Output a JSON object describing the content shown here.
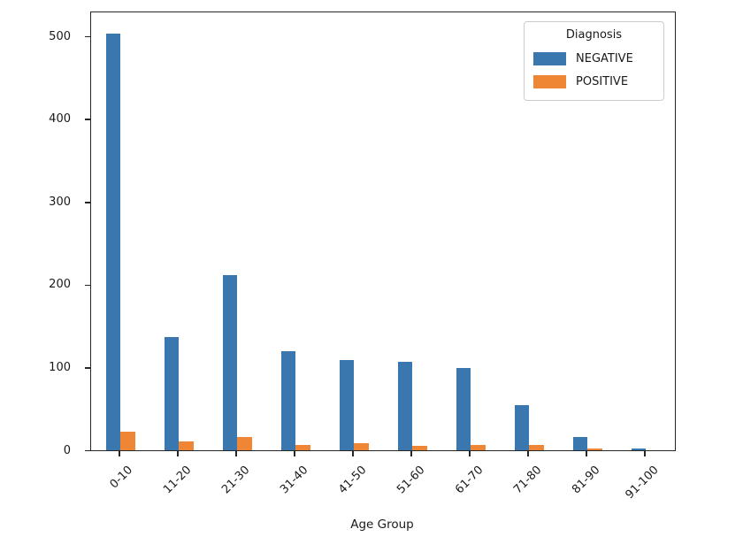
{
  "chart_data": {
    "type": "bar",
    "title": "",
    "xlabel": "Age Group",
    "ylabel": "",
    "categories": [
      "0-10",
      "11-20",
      "21-30",
      "31-40",
      "41-50",
      "51-60",
      "61-70",
      "71-80",
      "81-90",
      "91-100"
    ],
    "series": [
      {
        "name": "NEGATIVE",
        "color": "#3b77af",
        "values": [
          503,
          137,
          212,
          120,
          109,
          107,
          99,
          55,
          16,
          2
        ]
      },
      {
        "name": "POSITIVE",
        "color": "#ee8636",
        "values": [
          22,
          11,
          16,
          6,
          9,
          5,
          6,
          6,
          2,
          0
        ]
      }
    ],
    "ylim": [
      0,
      529
    ],
    "yticks": [
      0,
      100,
      200,
      300,
      400,
      500
    ],
    "bar_group_width": 0.5,
    "tick_rotation": 45,
    "grid": false,
    "legend": {
      "title": "Diagnosis",
      "position": "upper right"
    }
  },
  "colors": {
    "axis": "#262626",
    "text": "#1a1a1a",
    "legend_border": "#cccccc",
    "background": "#ffffff"
  }
}
